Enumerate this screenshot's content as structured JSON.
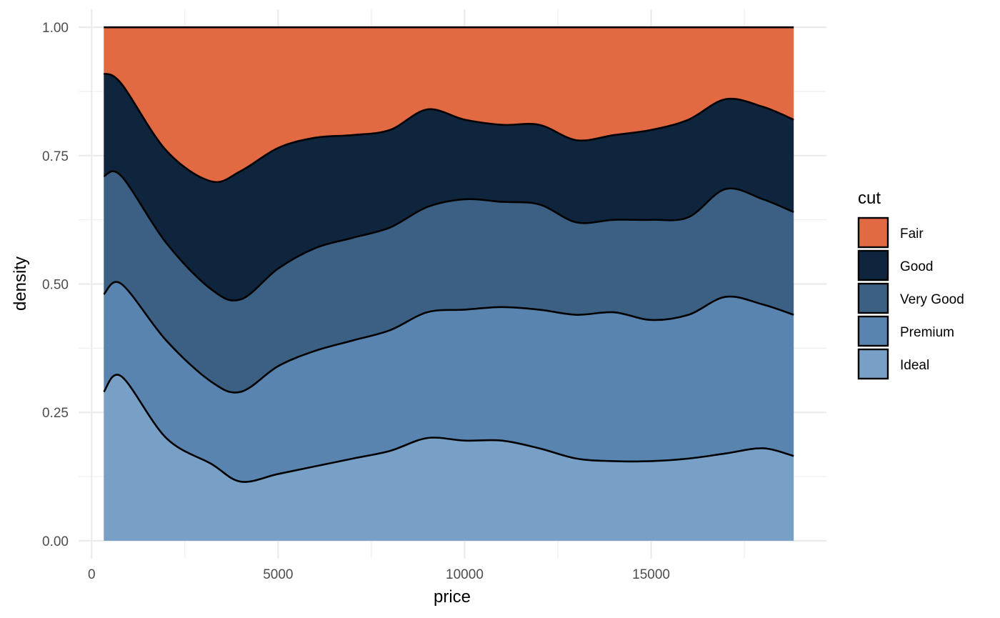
{
  "chart_data": {
    "type": "area",
    "subtype": "stacked-density-fill",
    "xlabel": "price",
    "ylabel": "density",
    "xlim": [
      -350,
      19700
    ],
    "ylim": [
      -0.035,
      1.035
    ],
    "x_ticks": [
      0,
      5000,
      10000,
      15000
    ],
    "x_tick_labels": [
      "0",
      "5000",
      "10000",
      "15000"
    ],
    "x_minor": [
      2500,
      7500,
      12500,
      17500
    ],
    "y_ticks": [
      0,
      0.25,
      0.5,
      0.75,
      1
    ],
    "y_tick_labels": [
      "0.00",
      "0.25",
      "0.50",
      "0.75",
      "1.00"
    ],
    "y_minor": [
      0.125,
      0.375,
      0.625,
      0.875
    ],
    "grid": true,
    "legend": {
      "title": "cut",
      "position": "right",
      "entries": [
        "Fair",
        "Good",
        "Very Good",
        "Premium",
        "Ideal"
      ]
    },
    "x": [
      326,
      800,
      2000,
      3200,
      4000,
      5000,
      6000,
      7000,
      8000,
      9000,
      10000,
      11000,
      12000,
      13000,
      14000,
      15000,
      16000,
      17000,
      18000,
      18823
    ],
    "boundaries": [
      {
        "between": "Ideal / Premium",
        "values": [
          0.29,
          0.32,
          0.2,
          0.15,
          0.115,
          0.13,
          0.145,
          0.16,
          0.175,
          0.2,
          0.195,
          0.195,
          0.18,
          0.16,
          0.155,
          0.155,
          0.16,
          0.17,
          0.18,
          0.165
        ]
      },
      {
        "between": "Premium / Very Good",
        "values": [
          0.48,
          0.5,
          0.39,
          0.31,
          0.29,
          0.34,
          0.37,
          0.39,
          0.41,
          0.445,
          0.45,
          0.455,
          0.45,
          0.44,
          0.445,
          0.43,
          0.44,
          0.475,
          0.46,
          0.44
        ]
      },
      {
        "between": "Very Good / Good",
        "values": [
          0.71,
          0.71,
          0.58,
          0.49,
          0.47,
          0.53,
          0.57,
          0.59,
          0.61,
          0.65,
          0.665,
          0.66,
          0.655,
          0.62,
          0.625,
          0.625,
          0.63,
          0.685,
          0.665,
          0.64
        ]
      },
      {
        "between": "Good / Fair",
        "values": [
          0.91,
          0.89,
          0.76,
          0.7,
          0.72,
          0.765,
          0.785,
          0.79,
          0.8,
          0.84,
          0.82,
          0.81,
          0.81,
          0.78,
          0.79,
          0.8,
          0.82,
          0.86,
          0.845,
          0.82
        ]
      }
    ],
    "series": [
      {
        "name": "Fair",
        "color": "#E16A42",
        "lower": 3,
        "upper": "top"
      },
      {
        "name": "Good",
        "color": "#0F253D",
        "lower": 2,
        "upper": 3
      },
      {
        "name": "Very Good",
        "color": "#3C6083",
        "lower": 1,
        "upper": 2
      },
      {
        "name": "Premium",
        "color": "#5A84B0",
        "lower": 0,
        "upper": 1
      },
      {
        "name": "Ideal",
        "color": "#789FC5",
        "lower": "bottom",
        "upper": 0
      }
    ],
    "outline_color": "#000000",
    "grid_color": "#EBEBEB"
  }
}
